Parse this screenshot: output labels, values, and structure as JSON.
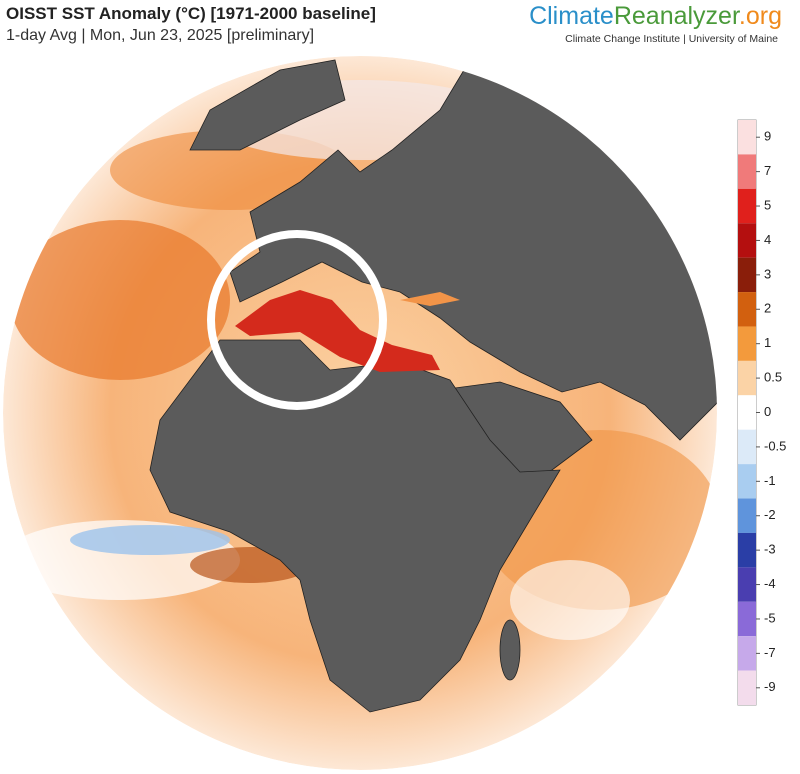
{
  "header": {
    "title": "OISST SST Anomaly (°C) [1971-2000 baseline]",
    "subtitle": "1-day Avg | Mon, Jun 23, 2025 [preliminary]"
  },
  "logo": {
    "part1": "Climate",
    "part2": "Reanalyzer",
    "part3": ".org",
    "affiliation": "Climate Change Institute | University of Maine"
  },
  "colorbar": {
    "ticks": [
      9,
      7,
      5,
      4,
      3,
      2,
      1,
      0.5,
      0,
      -0.5,
      -1,
      -2,
      -3,
      -4,
      -5,
      -7,
      -9
    ],
    "colors": [
      "#fbe0e0",
      "#f07a7a",
      "#e0201c",
      "#b40f0f",
      "#8a1e0a",
      "#d2600f",
      "#f39a3c",
      "#fbd3a6",
      "#ffffff",
      "#dceaf8",
      "#a9cdf0",
      "#5f94dc",
      "#2a3ea6",
      "#4a3eb0",
      "#8a6ad8",
      "#c6a9ea",
      "#f3dcec"
    ]
  }
}
